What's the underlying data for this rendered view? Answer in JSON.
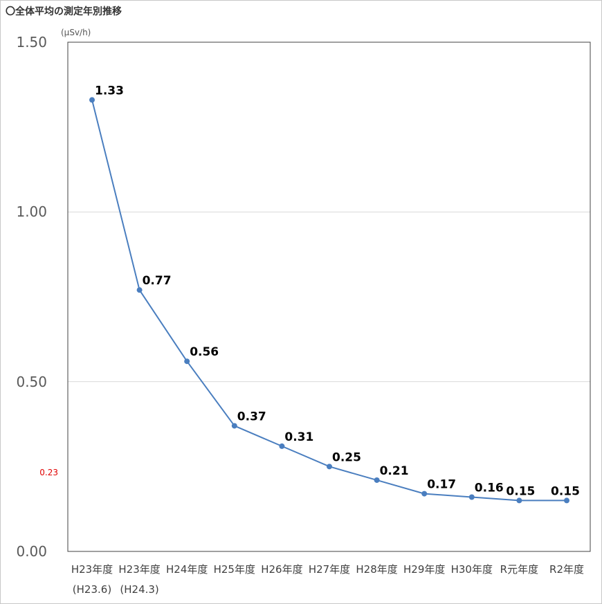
{
  "title": "〇全体平均の測定年別推移",
  "unit": "(μSv/h)",
  "colors": {
    "line": "#4a7ebf",
    "grid": "#d9d9d9",
    "axis": "#404040",
    "reference": "#e00000"
  },
  "chart_data": {
    "type": "line",
    "title": "〇全体平均の測定年別推移",
    "ylabel": "(μSv/h)",
    "xlabel": "",
    "ylim": [
      0,
      1.5
    ],
    "yticks": [
      "0.00",
      "0.50",
      "1.00",
      "1.50"
    ],
    "grid": true,
    "reference": {
      "value": 0.23,
      "label": "0.23"
    },
    "categories": [
      {
        "label": "H23年度",
        "sub": "(H23.6)"
      },
      {
        "label": "H23年度",
        "sub": "(H24.3)"
      },
      {
        "label": "H24年度",
        "sub": ""
      },
      {
        "label": "H25年度",
        "sub": ""
      },
      {
        "label": "H26年度",
        "sub": ""
      },
      {
        "label": "H27年度",
        "sub": ""
      },
      {
        "label": "H28年度",
        "sub": ""
      },
      {
        "label": "H29年度",
        "sub": ""
      },
      {
        "label": "H30年度",
        "sub": ""
      },
      {
        "label": "R元年度",
        "sub": ""
      },
      {
        "label": "R2年度",
        "sub": ""
      }
    ],
    "series": [
      {
        "values": [
          1.33,
          0.77,
          0.56,
          0.37,
          0.31,
          0.25,
          0.21,
          0.17,
          0.16,
          0.15,
          0.15
        ],
        "labels": [
          "1.33",
          "0.77",
          "0.56",
          "0.37",
          "0.31",
          "0.25",
          "0.21",
          "0.17",
          "0.16",
          "0.15",
          "0.15"
        ]
      }
    ]
  }
}
